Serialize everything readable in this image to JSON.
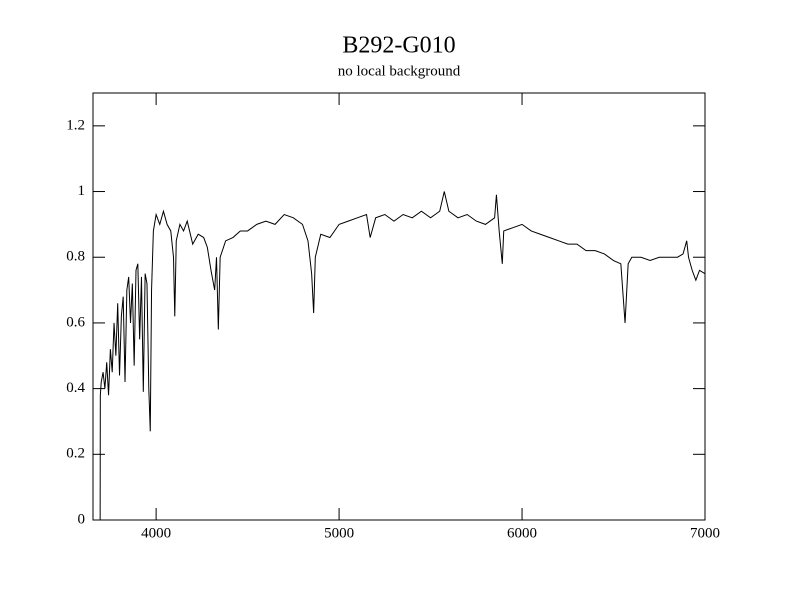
{
  "chart_data": {
    "type": "line",
    "title": "B292-G010",
    "subtitle": "no local background",
    "xlim": [
      3655,
      7000
    ],
    "ylim": [
      0,
      1.3
    ],
    "xticks": [
      4000,
      5000,
      6000,
      7000
    ],
    "yticks": [
      0,
      0.2,
      0.4,
      0.6,
      0.8,
      1,
      1.2
    ],
    "color": "#000000",
    "x": [
      3694,
      3695,
      3700,
      3710,
      3720,
      3730,
      3740,
      3750,
      3760,
      3770,
      3780,
      3790,
      3800,
      3810,
      3820,
      3830,
      3840,
      3850,
      3860,
      3870,
      3880,
      3890,
      3900,
      3910,
      3920,
      3930,
      3940,
      3950,
      3960,
      3968,
      3975,
      3985,
      4000,
      4020,
      4040,
      4060,
      4080,
      4095,
      4102,
      4110,
      4130,
      4150,
      4170,
      4200,
      4230,
      4260,
      4280,
      4300,
      4320,
      4330,
      4340,
      4350,
      4380,
      4420,
      4460,
      4500,
      4550,
      4600,
      4650,
      4700,
      4750,
      4800,
      4830,
      4850,
      4861,
      4870,
      4900,
      4950,
      5000,
      5050,
      5100,
      5150,
      5170,
      5200,
      5250,
      5300,
      5350,
      5400,
      5450,
      5500,
      5550,
      5575,
      5600,
      5650,
      5700,
      5750,
      5800,
      5850,
      5860,
      5875,
      5892,
      5900,
      5950,
      6000,
      6050,
      6100,
      6150,
      6200,
      6250,
      6300,
      6350,
      6400,
      6450,
      6500,
      6540,
      6563,
      6580,
      6600,
      6650,
      6700,
      6750,
      6800,
      6850,
      6880,
      6900,
      6910,
      6930,
      6950,
      6970,
      7000
    ],
    "values": [
      0,
      0.38,
      0.42,
      0.45,
      0.4,
      0.48,
      0.38,
      0.52,
      0.45,
      0.6,
      0.5,
      0.66,
      0.44,
      0.62,
      0.68,
      0.42,
      0.7,
      0.74,
      0.6,
      0.72,
      0.47,
      0.76,
      0.78,
      0.55,
      0.74,
      0.39,
      0.75,
      0.72,
      0.4,
      0.27,
      0.7,
      0.88,
      0.93,
      0.9,
      0.94,
      0.9,
      0.88,
      0.8,
      0.62,
      0.85,
      0.9,
      0.88,
      0.91,
      0.84,
      0.87,
      0.86,
      0.83,
      0.76,
      0.7,
      0.8,
      0.58,
      0.8,
      0.85,
      0.86,
      0.88,
      0.88,
      0.9,
      0.91,
      0.9,
      0.93,
      0.92,
      0.9,
      0.85,
      0.75,
      0.63,
      0.8,
      0.87,
      0.86,
      0.9,
      0.91,
      0.92,
      0.93,
      0.86,
      0.92,
      0.93,
      0.91,
      0.93,
      0.92,
      0.94,
      0.92,
      0.94,
      1.0,
      0.94,
      0.92,
      0.93,
      0.91,
      0.9,
      0.92,
      0.99,
      0.88,
      0.78,
      0.88,
      0.89,
      0.9,
      0.88,
      0.87,
      0.86,
      0.85,
      0.84,
      0.84,
      0.82,
      0.82,
      0.81,
      0.79,
      0.78,
      0.6,
      0.78,
      0.8,
      0.8,
      0.79,
      0.8,
      0.8,
      0.8,
      0.81,
      0.85,
      0.8,
      0.76,
      0.73,
      0.76,
      0.75
    ]
  }
}
